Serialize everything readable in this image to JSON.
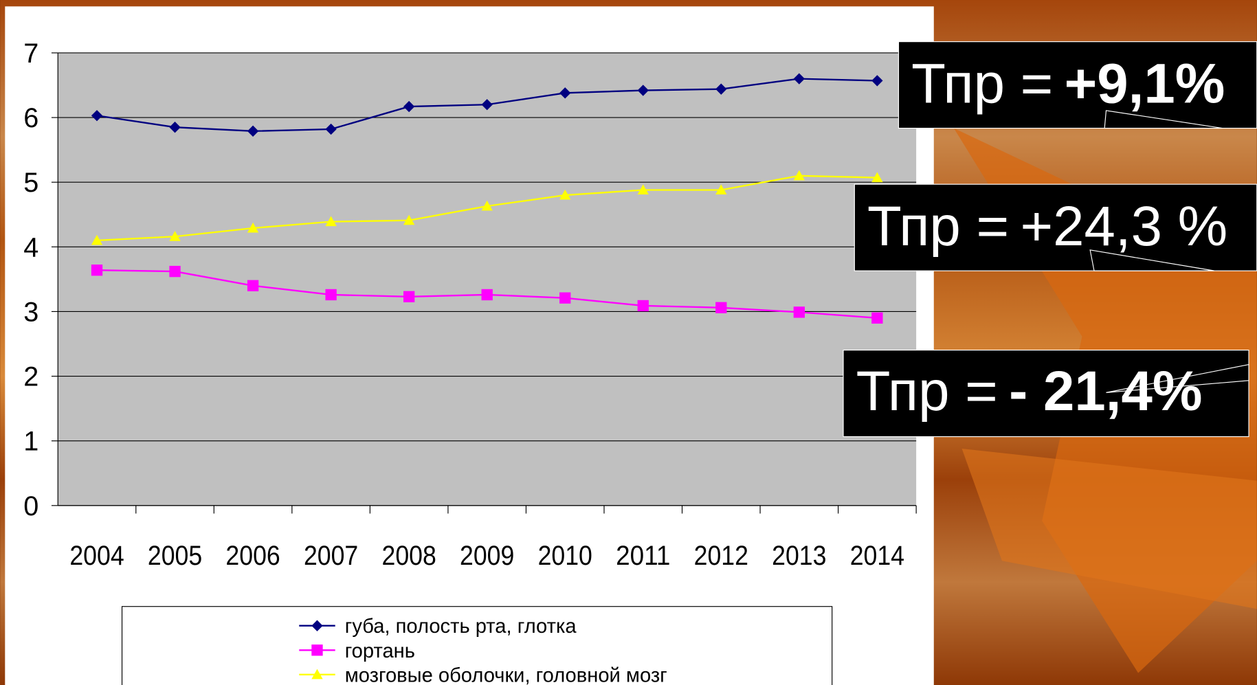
{
  "chart_data": {
    "type": "line",
    "categories": [
      "2004",
      "2005",
      "2006",
      "2007",
      "2008",
      "2009",
      "2010",
      "2011",
      "2012",
      "2013",
      "2014"
    ],
    "series": [
      {
        "name": "губа, полость рта, глотка",
        "color": "#000080",
        "marker": "diamond",
        "values": [
          6.03,
          5.85,
          5.79,
          5.82,
          6.17,
          6.2,
          6.38,
          6.42,
          6.44,
          6.6,
          6.57
        ]
      },
      {
        "name": "гортань",
        "color": "#ff00ff",
        "marker": "square",
        "values": [
          3.64,
          3.62,
          3.4,
          3.26,
          3.23,
          3.26,
          3.21,
          3.09,
          3.06,
          2.99,
          2.9
        ]
      },
      {
        "name": "мозговые оболочки, головной мозг",
        "color": "#ffff00",
        "marker": "triangle",
        "values": [
          4.1,
          4.16,
          4.29,
          4.39,
          4.41,
          4.63,
          4.8,
          4.88,
          4.88,
          5.1,
          5.07
        ]
      }
    ],
    "ylim": [
      0,
      7
    ],
    "yticks": [
      0,
      1,
      2,
      3,
      4,
      5,
      6,
      7
    ],
    "grid": true,
    "annotations": [
      {
        "label": "Тпр =",
        "value": "+9,1%",
        "bold": true
      },
      {
        "label": "Тпр =",
        "value": "+24,3 %",
        "bold": false
      },
      {
        "label": "Тпр =",
        "value": "- 21,4%",
        "bold": true
      }
    ]
  }
}
